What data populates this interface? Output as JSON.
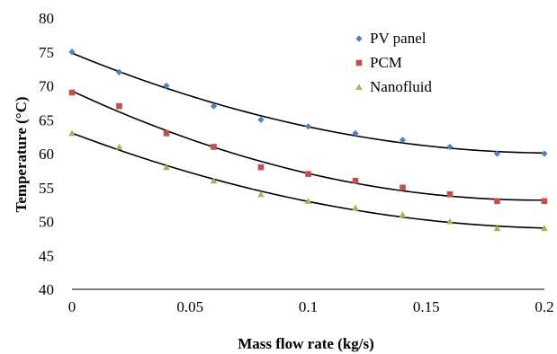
{
  "chart_data": {
    "type": "scatter",
    "title": "",
    "xlabel": "Mass flow rate (kg/s)",
    "ylabel": "Temperature (°C)",
    "xlim": [
      0,
      0.2
    ],
    "ylim": [
      40,
      80
    ],
    "xticks": [
      "0",
      "0.05",
      "0.1",
      "0.15",
      "0.2"
    ],
    "yticks": [
      "40",
      "45",
      "50",
      "55",
      "60",
      "65",
      "70",
      "75",
      "80"
    ],
    "grid": false,
    "legend_position": "top-right",
    "x": [
      0,
      0.02,
      0.04,
      0.06,
      0.08,
      0.1,
      0.12,
      0.14,
      0.16,
      0.18,
      0.2
    ],
    "series": [
      {
        "name": "PV panel",
        "marker": "diamond",
        "color": "#4F81BD",
        "values": [
          75,
          72,
          70,
          67,
          65,
          64,
          63,
          62,
          61,
          60,
          60
        ]
      },
      {
        "name": "PCM",
        "marker": "square",
        "color": "#C0504D",
        "values": [
          69,
          67,
          63,
          61,
          58,
          57,
          56,
          55,
          54,
          53,
          53
        ]
      },
      {
        "name": "Nanofluid",
        "marker": "triangle",
        "color": "#9BBB59",
        "values": [
          63,
          61,
          58,
          56,
          54,
          53,
          52,
          51,
          50,
          49,
          49
        ]
      }
    ],
    "trendline": "polynomial",
    "trendline_color": "#000000"
  }
}
